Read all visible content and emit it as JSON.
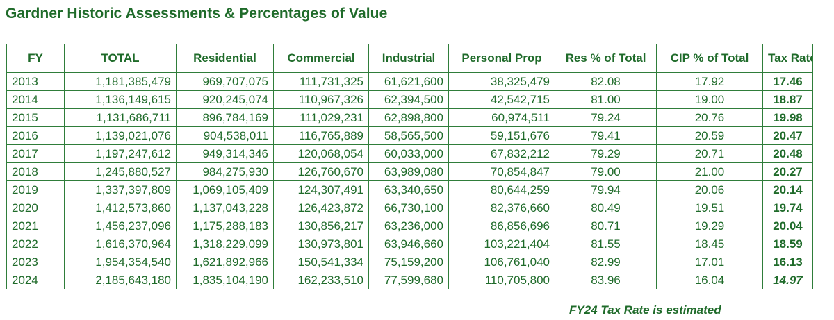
{
  "title": "Gardner Historic Assessments & Percentages of Value",
  "headers": {
    "fy": "FY",
    "total": "TOTAL",
    "residential": "Residential",
    "commercial": "Commercial",
    "industrial": "Industrial",
    "personal": "Personal Prop",
    "res_pct": "Res % of Total",
    "cip_pct": "CIP % of Total",
    "tax_rate": "Tax Rate"
  },
  "rows": [
    {
      "fy": "2013",
      "total": "1,181,385,479",
      "residential": "969,707,075",
      "commercial": "111,731,325",
      "industrial": "61,621,600",
      "personal": "38,325,479",
      "res_pct": "82.08",
      "cip_pct": "17.92",
      "tax_rate": "17.46"
    },
    {
      "fy": "2014",
      "total": "1,136,149,615",
      "residential": "920,245,074",
      "commercial": "110,967,326",
      "industrial": "62,394,500",
      "personal": "42,542,715",
      "res_pct": "81.00",
      "cip_pct": "19.00",
      "tax_rate": "18.87"
    },
    {
      "fy": "2015",
      "total": "1,131,686,711",
      "residential": "896,784,169",
      "commercial": "111,029,231",
      "industrial": "62,898,800",
      "personal": "60,974,511",
      "res_pct": "79.24",
      "cip_pct": "20.76",
      "tax_rate": "19.98"
    },
    {
      "fy": "2016",
      "total": "1,139,021,076",
      "residential": "904,538,011",
      "commercial": "116,765,889",
      "industrial": "58,565,500",
      "personal": "59,151,676",
      "res_pct": "79.41",
      "cip_pct": "20.59",
      "tax_rate": "20.47"
    },
    {
      "fy": "2017",
      "total": "1,197,247,612",
      "residential": "949,314,346",
      "commercial": "120,068,054",
      "industrial": "60,033,000",
      "personal": "67,832,212",
      "res_pct": "79.29",
      "cip_pct": "20.71",
      "tax_rate": "20.48"
    },
    {
      "fy": "2018",
      "total": "1,245,880,527",
      "residential": "984,275,930",
      "commercial": "126,760,670",
      "industrial": "63,989,080",
      "personal": "70,854,847",
      "res_pct": "79.00",
      "cip_pct": "21.00",
      "tax_rate": "20.27"
    },
    {
      "fy": "2019",
      "total": "1,337,397,809",
      "residential": "1,069,105,409",
      "commercial": "124,307,491",
      "industrial": "63,340,650",
      "personal": "80,644,259",
      "res_pct": "79.94",
      "cip_pct": "20.06",
      "tax_rate": "20.14"
    },
    {
      "fy": "2020",
      "total": "1,412,573,860",
      "residential": "1,137,043,228",
      "commercial": "126,423,872",
      "industrial": "66,730,100",
      "personal": "82,376,660",
      "res_pct": "80.49",
      "cip_pct": "19.51",
      "tax_rate": "19.74"
    },
    {
      "fy": "2021",
      "total": "1,456,237,096",
      "residential": "1,175,288,183",
      "commercial": "130,856,217",
      "industrial": "63,236,000",
      "personal": "86,856,696",
      "res_pct": "80.71",
      "cip_pct": "19.29",
      "tax_rate": "20.04"
    },
    {
      "fy": "2022",
      "total": "1,616,370,964",
      "residential": "1,318,229,099",
      "commercial": "130,973,801",
      "industrial": "63,946,660",
      "personal": "103,221,404",
      "res_pct": "81.55",
      "cip_pct": "18.45",
      "tax_rate": "18.59"
    },
    {
      "fy": "2023",
      "total": "1,954,354,540",
      "residential": "1,621,892,966",
      "commercial": "150,541,334",
      "industrial": "75,159,200",
      "personal": "106,761,040",
      "res_pct": "82.99",
      "cip_pct": "17.01",
      "tax_rate": "16.13"
    },
    {
      "fy": "2024",
      "total": "2,185,643,180",
      "residential": "1,835,104,190",
      "commercial": "162,233,510",
      "industrial": "77,599,680",
      "personal": "110,705,800",
      "res_pct": "83.96",
      "cip_pct": "16.04",
      "tax_rate": "14.97"
    }
  ],
  "footnote": "FY24 Tax Rate is estimated",
  "colors": {
    "text": "#1f6b2a",
    "border": "#2f7d3a",
    "background": "#ffffff"
  }
}
